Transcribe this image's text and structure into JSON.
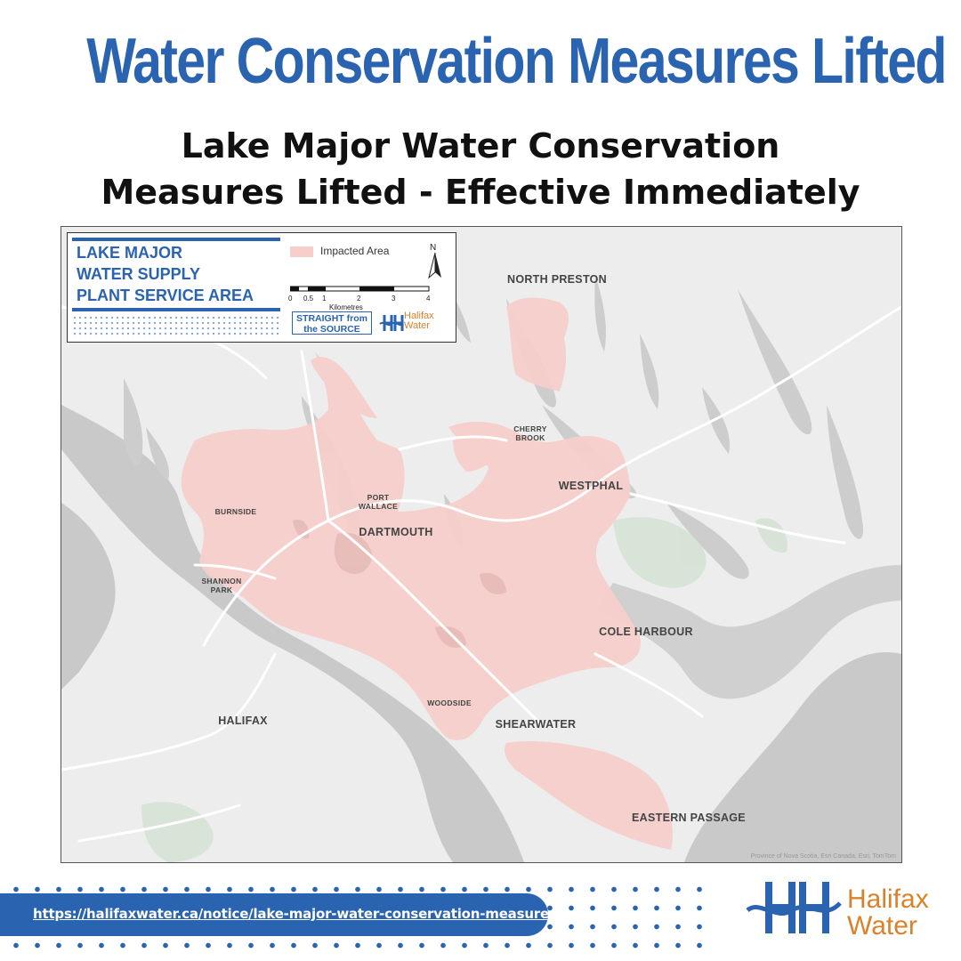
{
  "header": {
    "title": "Water Conservation Measures Lifted",
    "subtitle_line1": "Lake Major Water Conservation",
    "subtitle_line2": "Measures Lifted - Effective Immediately"
  },
  "map": {
    "legend": {
      "title_lines": [
        "LAKE MAJOR",
        "WATER SUPPLY",
        "PLANT SERVICE AREA"
      ],
      "impacted_label": "Impacted Area",
      "impacted_color": "#f6cfcb",
      "north_symbol": "N",
      "scale_ticks": [
        "0",
        "0.5",
        "1",
        "2",
        "3",
        "4"
      ],
      "scale_unit": "Kilometres",
      "badge_line1": "STRAIGHT from",
      "badge_line2": "the SOURCE",
      "logo_line1": "Halifax",
      "logo_line2": "Water"
    },
    "places": {
      "north_preston": "NORTH PRESTON",
      "cherry_brook_1": "CHERRY",
      "cherry_brook_2": "BROOK",
      "westphal": "WESTPHAL",
      "burnside": "BURNSIDE",
      "port_wallace_1": "PORT",
      "port_wallace_2": "WALLACE",
      "dartmouth": "DARTMOUTH",
      "shannon_park_1": "SHANNON",
      "shannon_park_2": "PARK",
      "cole_harbour": "COLE HARBOUR",
      "woodside": "WOODSIDE",
      "shearwater": "SHEARWATER",
      "halifax": "HALIFAX",
      "eastern_passage": "EASTERN PASSAGE"
    },
    "attribution": "Province of Nova Scotia, Esri Canada, Esri, TomTom"
  },
  "footer": {
    "url": "https://halifaxwater.ca/notice/lake-major-water-conservation-measures",
    "logo_line1": "Halifax",
    "logo_line2": "Water"
  },
  "colors": {
    "brand_blue": "#2a63b0",
    "brand_orange": "#d9822b",
    "water": "#c8c8c8",
    "land": "#ededed"
  }
}
